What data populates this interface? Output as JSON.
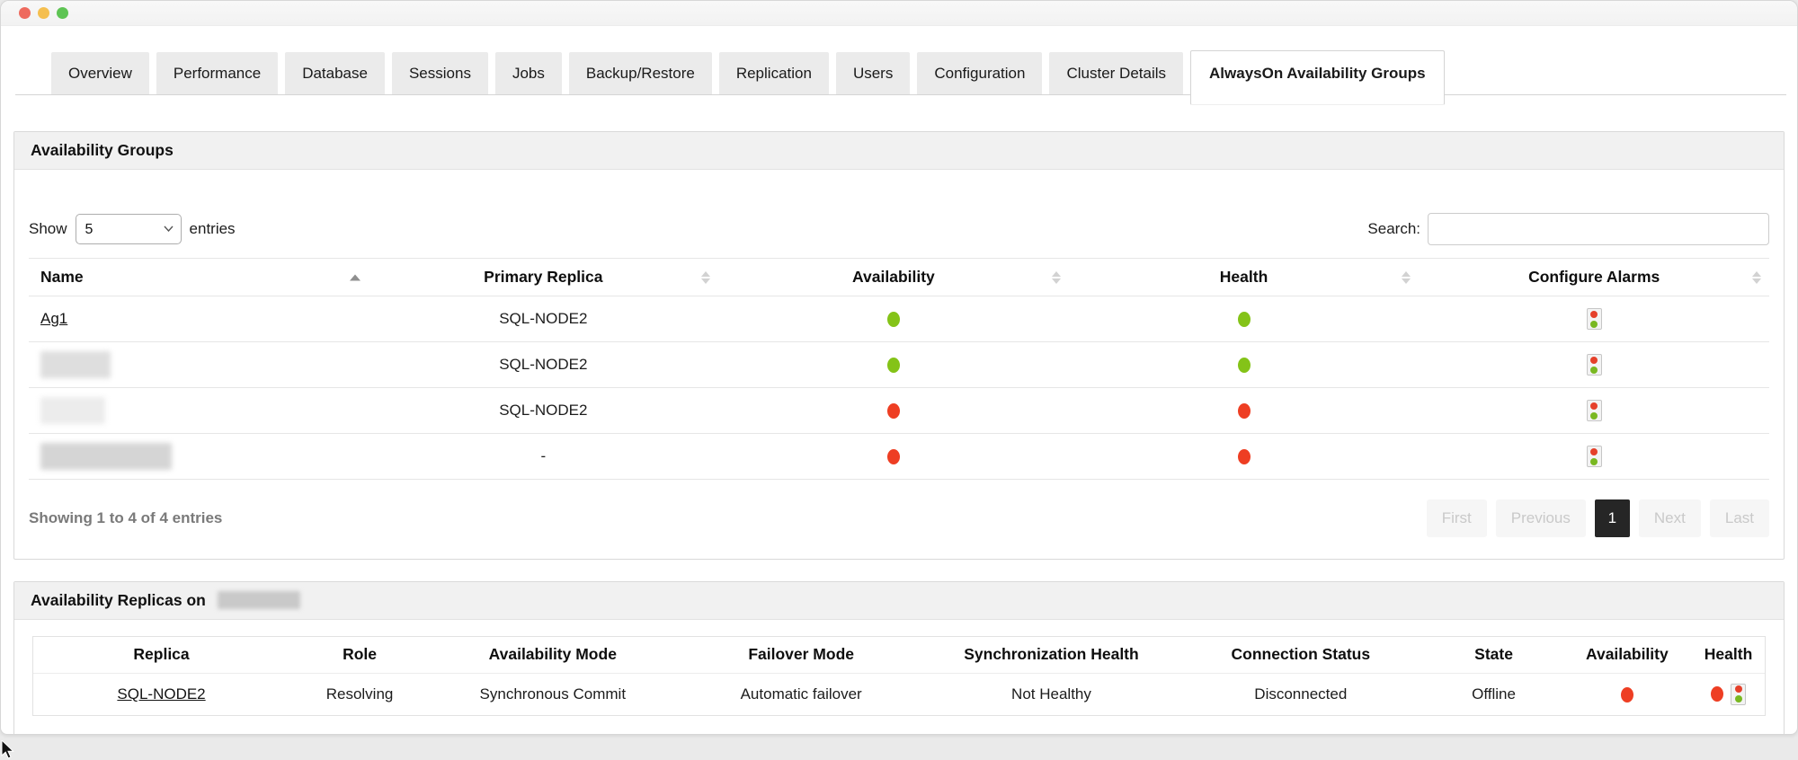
{
  "window": {
    "controls": [
      {
        "name": "close",
        "color": "#ee6a5e"
      },
      {
        "name": "minimize",
        "color": "#f5bf4f"
      },
      {
        "name": "zoom",
        "color": "#5ec454"
      }
    ]
  },
  "tabs": {
    "items": [
      "Overview",
      "Performance",
      "Database",
      "Sessions",
      "Jobs",
      "Backup/Restore",
      "Replication",
      "Users",
      "Configuration",
      "Cluster Details",
      "AlwaysOn Availability Groups"
    ],
    "active": "AlwaysOn Availability Groups"
  },
  "availability_groups": {
    "title": "Availability Groups",
    "show_label": "Show",
    "entries_label": "entries",
    "page_size": "5",
    "page_size_options": [
      "5"
    ],
    "search_label": "Search:",
    "search_value": "",
    "columns": [
      {
        "label": "Name",
        "sort": "asc",
        "align": "left"
      },
      {
        "label": "Primary Replica",
        "sort": "both",
        "align": "center"
      },
      {
        "label": "Availability",
        "sort": "both",
        "align": "center"
      },
      {
        "label": "Health",
        "sort": "both",
        "align": "center"
      },
      {
        "label": "Configure Alarms",
        "sort": "both",
        "align": "center"
      }
    ],
    "rows": [
      {
        "name": "Ag1",
        "redacted": false,
        "primary_replica": "SQL-NODE2",
        "availability": "up",
        "health": "up",
        "configure_alarms": "traffic-light-icon"
      },
      {
        "name": "",
        "redacted": true,
        "redact_width": 78,
        "redact_tone": "a",
        "primary_replica": "SQL-NODE2",
        "availability": "up",
        "health": "up",
        "configure_alarms": "traffic-light-icon"
      },
      {
        "name": "",
        "redacted": true,
        "redact_width": 72,
        "redact_tone": "b",
        "primary_replica": "SQL-NODE2",
        "availability": "down",
        "health": "down",
        "configure_alarms": "traffic-light-icon"
      },
      {
        "name": "",
        "redacted": true,
        "redact_width": 146,
        "redact_tone": "c",
        "primary_replica": "-",
        "availability": "down",
        "health": "down",
        "configure_alarms": "traffic-light-icon"
      }
    ],
    "summary": "Showing 1 to 4 of 4 entries",
    "pagination": [
      {
        "label": "First",
        "state": "disabled"
      },
      {
        "label": "Previous",
        "state": "disabled"
      },
      {
        "label": "1",
        "state": "active"
      },
      {
        "label": "Next",
        "state": "disabled"
      },
      {
        "label": "Last",
        "state": "disabled"
      }
    ]
  },
  "availability_replicas": {
    "title_prefix": "Availability Replicas on",
    "title_server_redacted": true,
    "columns": [
      "Replica",
      "Role",
      "Availability Mode",
      "Failover Mode",
      "Synchronization Health",
      "Connection Status",
      "State",
      "Availability",
      "Health"
    ],
    "rows": [
      {
        "replica": "SQL-NODE2",
        "role": "Resolving",
        "availability_mode": "Synchronous Commit",
        "failover_mode": "Automatic failover",
        "synchronization_health": "Not Healthy",
        "connection_status": "Disconnected",
        "state": "Offline",
        "availability": "down",
        "health": "down",
        "configure_alarms": "traffic-light-icon"
      }
    ]
  },
  "colors": {
    "status_up": "#84c318",
    "status_down": "#ee3e23",
    "pagination_active_bg": "#262626"
  }
}
